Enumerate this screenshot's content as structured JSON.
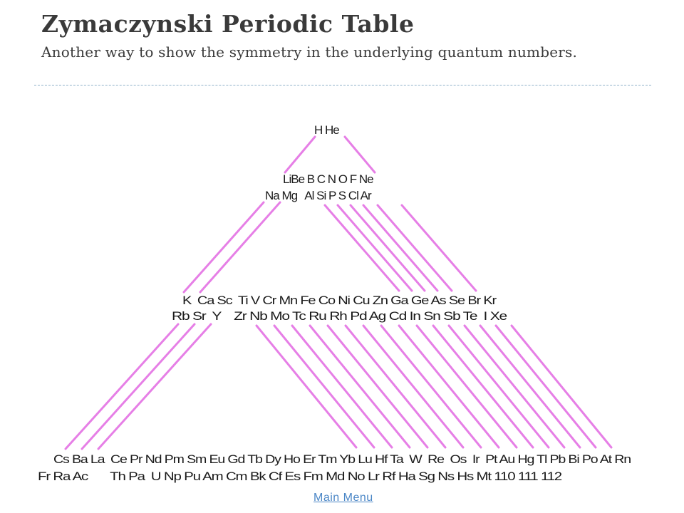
{
  "header": {
    "title": "Zymaczynski Periodic Table",
    "subtitle": "Another way to show the symmetry in the underlying quantum numbers."
  },
  "diagram": {
    "rows": {
      "row1": "H He",
      "row2": "LiBe B C N O F Ne",
      "row3": "Na Mg   Al Si P S Cl Ar",
      "row4": "K  Ca Sc  Ti V Cr Mn Fe Co Ni Cu Zn Ga Ge As Se Br Kr",
      "row5": "Rb Sr  Y    Zr Nb Mo Tc Ru Rh Pd Ag Cd In Sn Sb Te  I Xe",
      "row6": "Cs Ba La  Ce Pr Nd Pm Sm Eu Gd Tb Dy Ho Er Tm Yb Lu Hf Ta  W  Re  Os  Ir  Pt Au Hg Tl Pb Bi Po At Rn",
      "row7": "Fr Ra Ac       Th Pa  U Np Pu Am Cm Bk Cf Es Fm Md No Lr Rf Ha Sg Ns Hs Mt 110 111 112"
    },
    "line_color": "#e67fe6"
  },
  "footer": {
    "main_menu": "Main Menu"
  }
}
